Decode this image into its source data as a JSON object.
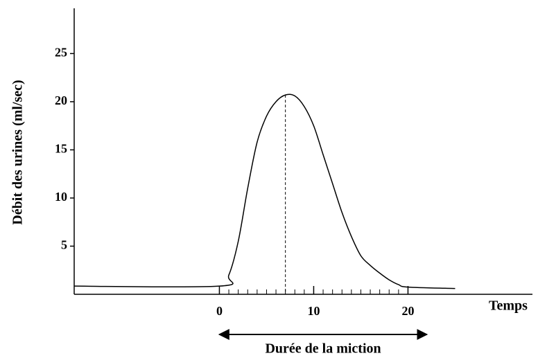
{
  "chart_data": {
    "type": "line",
    "y_label": "Débit des urines (ml/sec)",
    "x_label": "Temps",
    "x": [
      -15.4,
      0,
      1,
      2,
      3,
      4,
      5,
      6,
      7,
      8,
      9,
      10,
      11,
      12,
      13,
      14,
      15,
      16,
      17,
      18,
      19,
      20,
      25
    ],
    "series": [
      {
        "color": "#000000",
        "values": [
          0.85,
          0.85,
          2,
          5.5,
          11,
          15.8,
          18.5,
          20,
          20.7,
          20.6,
          19.5,
          17.5,
          14.5,
          11.5,
          8.5,
          6,
          4,
          3,
          2.2,
          1.5,
          1,
          0.75,
          0.6
        ]
      }
    ],
    "xlim": [
      -15.4,
      33.2
    ],
    "ylim": [
      0,
      29.7
    ],
    "xticks": [
      0,
      10,
      20
    ],
    "xticks_minor": [
      0,
      1,
      2,
      3,
      4,
      5,
      6,
      7,
      8,
      9,
      10,
      11,
      12,
      13,
      14,
      15,
      16,
      17,
      18,
      19,
      20
    ],
    "yticks": [
      5,
      10,
      15,
      20,
      25
    ],
    "duration": {
      "label": "Durée de la miction",
      "from": 0,
      "to": 22
    }
  }
}
